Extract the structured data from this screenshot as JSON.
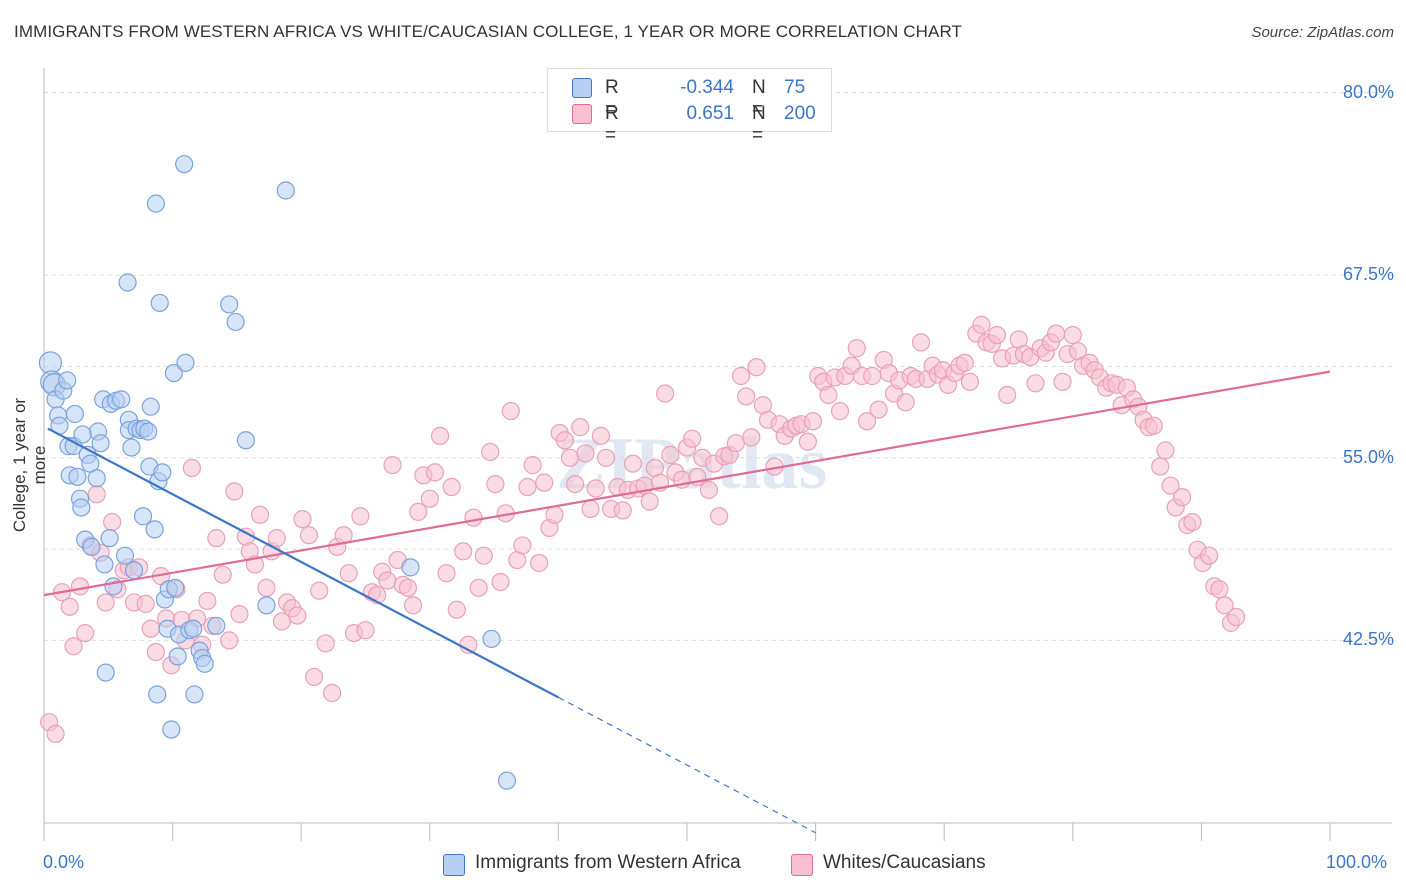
{
  "title": "IMMIGRANTS FROM WESTERN AFRICA VS WHITE/CAUCASIAN COLLEGE, 1 YEAR OR MORE CORRELATION CHART",
  "source": "Source: ZipAtlas.com",
  "colors": {
    "blue": "#3b76c7",
    "blue_fill": "#b7cff2",
    "pink": "#e06b96",
    "pink_fill": "#f7bfd0",
    "grid": "#dddddd",
    "axis_text": "#3b76c7"
  },
  "legend_top": {
    "rows": [
      {
        "r_label": "R =",
        "r_value": "-0.344",
        "n_label": "N =",
        "n_value": "75"
      },
      {
        "r_label": "R =",
        "r_value": "0.651",
        "n_label": "N =",
        "n_value": "200"
      }
    ]
  },
  "legend_bottom": [
    "Immigrants from Western Africa",
    "Whites/Caucasians"
  ],
  "chart_data": {
    "type": "scatter",
    "xlabel": "",
    "ylabel": "College, 1 year or more",
    "xlim": [
      0,
      100
    ],
    "ylim": [
      30,
      81
    ],
    "x_tick_labels": [
      "0.0%",
      "100.0%"
    ],
    "y_ticks": [
      42.5,
      55.0,
      67.5,
      80.0
    ],
    "y_tick_labels": [
      "42.5%",
      "55.0%",
      "67.5%",
      "80.0%"
    ],
    "watermark": "ZIPatlas",
    "series": [
      {
        "name": "Immigrants from Western Africa",
        "color": "#3b76c7",
        "r": -0.344,
        "n": 75,
        "trend": {
          "x0": 0.3,
          "y0": 57.0,
          "x1": 40.0,
          "y1": 38.6,
          "dash_to_x": 60.0
        },
        "points": [
          [
            0.5,
            61.5
          ],
          [
            0.6,
            60.2
          ],
          [
            0.8,
            60.0
          ],
          [
            0.9,
            59.0
          ],
          [
            1.1,
            57.9
          ],
          [
            1.2,
            57.2
          ],
          [
            1.5,
            59.6
          ],
          [
            1.8,
            60.3
          ],
          [
            1.9,
            55.8
          ],
          [
            2.0,
            53.8
          ],
          [
            2.3,
            55.8
          ],
          [
            2.6,
            53.7
          ],
          [
            2.8,
            52.2
          ],
          [
            2.9,
            51.6
          ],
          [
            3.2,
            49.4
          ],
          [
            3.4,
            55.2
          ],
          [
            3.6,
            54.6
          ],
          [
            3.7,
            48.9
          ],
          [
            4.1,
            53.6
          ],
          [
            4.2,
            56.8
          ],
          [
            4.4,
            56.0
          ],
          [
            4.6,
            59.0
          ],
          [
            4.7,
            47.7
          ],
          [
            4.8,
            40.3
          ],
          [
            5.1,
            49.5
          ],
          [
            5.2,
            58.7
          ],
          [
            5.6,
            58.9
          ],
          [
            5.4,
            46.2
          ],
          [
            6.0,
            59.0
          ],
          [
            6.3,
            48.3
          ],
          [
            6.6,
            57.6
          ],
          [
            6.6,
            56.9
          ],
          [
            6.8,
            55.7
          ],
          [
            7.0,
            47.3
          ],
          [
            7.2,
            57.0
          ],
          [
            7.5,
            56.9
          ],
          [
            7.7,
            51.0
          ],
          [
            7.8,
            57.0
          ],
          [
            8.1,
            56.8
          ],
          [
            8.2,
            54.4
          ],
          [
            8.3,
            58.5
          ],
          [
            8.6,
            50.1
          ],
          [
            8.7,
            72.4
          ],
          [
            8.8,
            38.8
          ],
          [
            8.9,
            53.4
          ],
          [
            9.0,
            65.6
          ],
          [
            9.4,
            45.3
          ],
          [
            9.6,
            43.3
          ],
          [
            9.7,
            46.0
          ],
          [
            9.9,
            36.4
          ],
          [
            10.1,
            60.8
          ],
          [
            10.2,
            46.1
          ],
          [
            10.4,
            41.4
          ],
          [
            10.5,
            42.9
          ],
          [
            10.9,
            75.1
          ],
          [
            11.0,
            61.5
          ],
          [
            11.3,
            43.2
          ],
          [
            11.6,
            43.3
          ],
          [
            11.7,
            38.8
          ],
          [
            12.1,
            41.8
          ],
          [
            12.3,
            41.3
          ],
          [
            12.5,
            40.9
          ],
          [
            14.4,
            65.5
          ],
          [
            14.9,
            64.3
          ],
          [
            15.7,
            56.2
          ],
          [
            17.3,
            44.9
          ],
          [
            18.8,
            73.3
          ],
          [
            28.5,
            47.5
          ],
          [
            34.8,
            42.6
          ],
          [
            36.0,
            32.9
          ],
          [
            6.5,
            67.0
          ],
          [
            3.0,
            56.6
          ],
          [
            2.4,
            58.0
          ],
          [
            9.2,
            54.0
          ],
          [
            13.4,
            43.5
          ]
        ],
        "sizes_large": [
          [
            0.5,
            61.5
          ],
          [
            0.8,
            60.0
          ],
          [
            0.6,
            60.2
          ]
        ]
      },
      {
        "name": "Whites/Caucasians",
        "color": "#e06b96",
        "r": 0.651,
        "n": 200,
        "trend": {
          "x0": 0.0,
          "y0": 45.6,
          "x1": 100.0,
          "y1": 60.9
        },
        "points": [
          [
            0.4,
            36.9
          ],
          [
            0.9,
            36.1
          ],
          [
            1.4,
            45.8
          ],
          [
            2.0,
            44.8
          ],
          [
            2.3,
            42.1
          ],
          [
            2.8,
            46.2
          ],
          [
            3.2,
            43.0
          ],
          [
            3.6,
            49.0
          ],
          [
            4.1,
            52.5
          ],
          [
            4.4,
            48.5
          ],
          [
            4.8,
            45.1
          ],
          [
            5.3,
            50.6
          ],
          [
            5.7,
            46.0
          ],
          [
            6.2,
            47.3
          ],
          [
            6.6,
            47.5
          ],
          [
            7.0,
            45.1
          ],
          [
            7.4,
            47.5
          ],
          [
            7.9,
            45.0
          ],
          [
            8.3,
            43.3
          ],
          [
            8.7,
            41.7
          ],
          [
            9.1,
            46.9
          ],
          [
            9.5,
            44.0
          ],
          [
            9.9,
            40.8
          ],
          [
            10.3,
            46.0
          ],
          [
            10.7,
            43.9
          ],
          [
            11.0,
            42.5
          ],
          [
            11.5,
            54.3
          ],
          [
            11.9,
            44.0
          ],
          [
            12.3,
            42.2
          ],
          [
            12.7,
            45.2
          ],
          [
            13.1,
            43.5
          ],
          [
            13.4,
            49.5
          ],
          [
            13.9,
            47.0
          ],
          [
            14.4,
            42.5
          ],
          [
            14.8,
            52.7
          ],
          [
            15.2,
            44.3
          ],
          [
            15.7,
            49.6
          ],
          [
            16.0,
            48.6
          ],
          [
            16.4,
            47.7
          ],
          [
            16.8,
            51.1
          ],
          [
            17.3,
            46.1
          ],
          [
            17.7,
            48.6
          ],
          [
            18.1,
            49.5
          ],
          [
            18.5,
            43.8
          ],
          [
            18.9,
            45.1
          ],
          [
            19.3,
            44.7
          ],
          [
            19.7,
            44.2
          ],
          [
            20.1,
            50.8
          ],
          [
            20.6,
            49.7
          ],
          [
            21.0,
            40.0
          ],
          [
            21.4,
            45.9
          ],
          [
            21.9,
            42.3
          ],
          [
            22.4,
            38.9
          ],
          [
            22.8,
            48.9
          ],
          [
            23.3,
            49.7
          ],
          [
            23.7,
            47.1
          ],
          [
            24.1,
            43.0
          ],
          [
            24.6,
            51.0
          ],
          [
            25.0,
            43.2
          ],
          [
            25.5,
            45.8
          ],
          [
            25.9,
            45.6
          ],
          [
            26.3,
            47.2
          ],
          [
            26.7,
            46.6
          ],
          [
            27.1,
            54.5
          ],
          [
            27.5,
            48.0
          ],
          [
            27.9,
            46.3
          ],
          [
            28.3,
            46.1
          ],
          [
            28.7,
            44.9
          ],
          [
            29.1,
            51.3
          ],
          [
            29.5,
            53.8
          ],
          [
            30.0,
            52.2
          ],
          [
            30.4,
            54.0
          ],
          [
            30.8,
            56.5
          ],
          [
            31.3,
            47.1
          ],
          [
            31.7,
            53.0
          ],
          [
            32.1,
            44.6
          ],
          [
            32.6,
            48.6
          ],
          [
            33.0,
            42.2
          ],
          [
            33.4,
            50.9
          ],
          [
            33.8,
            46.1
          ],
          [
            34.2,
            48.3
          ],
          [
            34.7,
            55.4
          ],
          [
            35.1,
            53.2
          ],
          [
            35.5,
            46.5
          ],
          [
            35.9,
            51.2
          ],
          [
            36.3,
            58.2
          ],
          [
            36.8,
            48.0
          ],
          [
            37.2,
            49.0
          ],
          [
            37.6,
            53.0
          ],
          [
            38.0,
            54.5
          ],
          [
            38.5,
            47.8
          ],
          [
            38.9,
            53.3
          ],
          [
            39.3,
            50.2
          ],
          [
            39.7,
            51.1
          ],
          [
            40.1,
            56.7
          ],
          [
            40.5,
            56.2
          ],
          [
            40.9,
            55.0
          ],
          [
            41.3,
            53.2
          ],
          [
            41.7,
            57.1
          ],
          [
            42.1,
            55.3
          ],
          [
            42.5,
            51.5
          ],
          [
            42.9,
            52.9
          ],
          [
            43.3,
            56.5
          ],
          [
            43.7,
            55.0
          ],
          [
            44.1,
            51.5
          ],
          [
            44.6,
            53.0
          ],
          [
            45.0,
            51.4
          ],
          [
            45.4,
            52.8
          ],
          [
            45.8,
            54.6
          ],
          [
            46.2,
            52.9
          ],
          [
            46.7,
            53.1
          ],
          [
            47.1,
            52.0
          ],
          [
            47.5,
            54.3
          ],
          [
            47.9,
            53.3
          ],
          [
            48.3,
            59.4
          ],
          [
            48.7,
            55.2
          ],
          [
            49.1,
            54.0
          ],
          [
            49.6,
            53.5
          ],
          [
            50.0,
            55.7
          ],
          [
            50.4,
            56.3
          ],
          [
            50.8,
            53.7
          ],
          [
            51.2,
            55.0
          ],
          [
            51.7,
            52.8
          ],
          [
            52.1,
            54.6
          ],
          [
            52.5,
            51.0
          ],
          [
            52.9,
            55.1
          ],
          [
            53.3,
            55.2
          ],
          [
            53.8,
            56.0
          ],
          [
            54.2,
            60.6
          ],
          [
            54.6,
            59.2
          ],
          [
            55.0,
            56.4
          ],
          [
            55.4,
            61.2
          ],
          [
            55.9,
            58.6
          ],
          [
            56.3,
            57.6
          ],
          [
            56.8,
            54.4
          ],
          [
            57.2,
            57.3
          ],
          [
            57.6,
            56.5
          ],
          [
            58.1,
            57.0
          ],
          [
            58.5,
            57.2
          ],
          [
            58.9,
            57.3
          ],
          [
            59.4,
            56.1
          ],
          [
            59.8,
            57.5
          ],
          [
            60.2,
            60.6
          ],
          [
            60.6,
            60.2
          ],
          [
            61.0,
            59.3
          ],
          [
            61.5,
            60.5
          ],
          [
            61.9,
            58.2
          ],
          [
            62.3,
            60.6
          ],
          [
            62.8,
            61.3
          ],
          [
            63.2,
            62.5
          ],
          [
            63.6,
            60.6
          ],
          [
            64.0,
            57.5
          ],
          [
            64.4,
            60.6
          ],
          [
            64.9,
            58.3
          ],
          [
            65.3,
            61.7
          ],
          [
            65.7,
            60.8
          ],
          [
            66.1,
            59.4
          ],
          [
            66.5,
            60.3
          ],
          [
            67.0,
            58.8
          ],
          [
            67.4,
            60.6
          ],
          [
            67.8,
            60.4
          ],
          [
            68.2,
            62.9
          ],
          [
            68.7,
            60.4
          ],
          [
            69.1,
            61.3
          ],
          [
            69.5,
            60.7
          ],
          [
            69.9,
            61.0
          ],
          [
            70.3,
            60.0
          ],
          [
            70.8,
            60.8
          ],
          [
            71.2,
            61.3
          ],
          [
            71.6,
            61.5
          ],
          [
            72.0,
            60.2
          ],
          [
            72.5,
            63.5
          ],
          [
            72.9,
            64.1
          ],
          [
            73.3,
            62.9
          ],
          [
            73.7,
            62.8
          ],
          [
            74.1,
            63.4
          ],
          [
            74.5,
            61.8
          ],
          [
            74.9,
            59.3
          ],
          [
            75.4,
            62.0
          ],
          [
            75.8,
            63.1
          ],
          [
            76.2,
            62.1
          ],
          [
            76.7,
            61.9
          ],
          [
            77.1,
            60.1
          ],
          [
            77.5,
            62.5
          ],
          [
            77.9,
            62.2
          ],
          [
            78.3,
            62.9
          ],
          [
            78.7,
            63.5
          ],
          [
            79.2,
            60.2
          ],
          [
            79.6,
            62.1
          ],
          [
            80.0,
            63.4
          ],
          [
            80.4,
            62.3
          ],
          [
            80.8,
            61.3
          ],
          [
            81.3,
            61.5
          ],
          [
            81.7,
            61.0
          ],
          [
            82.1,
            60.5
          ],
          [
            82.6,
            59.8
          ],
          [
            83.0,
            60.1
          ],
          [
            83.4,
            60.0
          ],
          [
            83.8,
            58.6
          ],
          [
            84.2,
            59.8
          ],
          [
            84.7,
            59.0
          ],
          [
            85.1,
            58.5
          ],
          [
            85.5,
            57.6
          ],
          [
            85.9,
            57.1
          ],
          [
            86.3,
            57.2
          ],
          [
            86.8,
            54.4
          ],
          [
            87.2,
            55.5
          ],
          [
            87.6,
            53.1
          ],
          [
            88.0,
            51.6
          ],
          [
            88.5,
            52.3
          ],
          [
            88.9,
            50.4
          ],
          [
            89.3,
            50.6
          ],
          [
            89.7,
            48.7
          ],
          [
            90.1,
            47.8
          ],
          [
            90.6,
            48.3
          ],
          [
            91.0,
            46.2
          ],
          [
            91.4,
            46.0
          ],
          [
            91.8,
            44.9
          ],
          [
            92.3,
            43.7
          ],
          [
            92.7,
            44.1
          ]
        ]
      }
    ]
  }
}
